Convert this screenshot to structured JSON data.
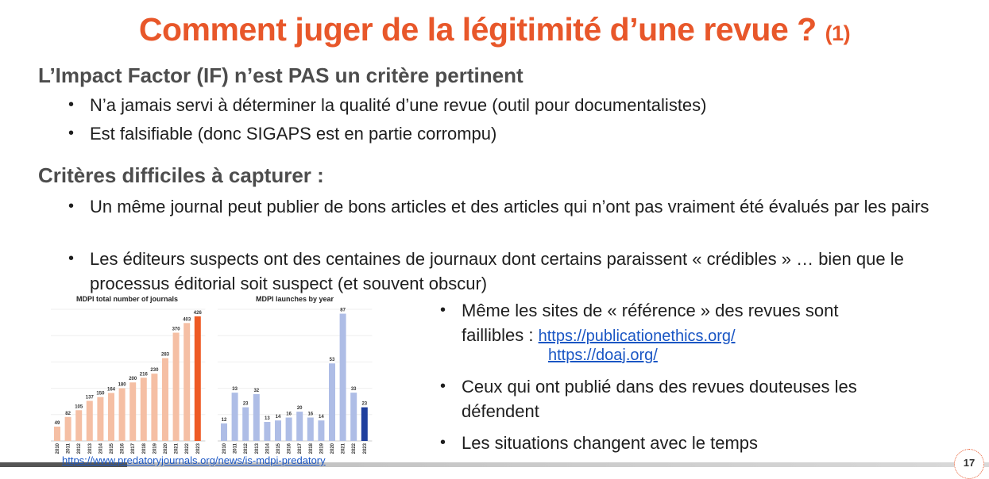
{
  "slide": {
    "title": "Comment juger de la légitimité d’une revue ?",
    "title_suffix": "(1)",
    "section1_heading": "L’Impact Factor (IF) n’est PAS un critère pertinent",
    "section1_bullets": [
      "N’a jamais servi à déterminer la qualité d’une revue (outil pour documentalistes)",
      "Est falsifiable (donc SIGAPS est en partie corrompu)"
    ],
    "section2_heading": "Critères difficiles à capturer :",
    "section2_bullets": [
      "Un même journal peut publier de bons articles et des articles qui n’ont pas vraiment été évalués par les pairs",
      "Les éditeurs suspects ont des centaines de journaux dont certains paraissent « crédibles » … bien que le processus éditorial soit suspect (et souvent obscur)"
    ],
    "right_bullets": {
      "b1_text_line1": "Même les sites de « référence » des revues sont",
      "b1_text_line2": "faillibles :",
      "link1": "https://publicationethics.org/",
      "link2": "https://doaj.org/",
      "b2": "Ceux qui ont publié dans des revues douteuses les défendent",
      "b3": "Les situations changent avec le temps"
    },
    "source_link": "https://www.predatoryjournals.org/news/is-mdpi-predatory",
    "page_number": "17"
  },
  "chart_data": [
    {
      "type": "bar",
      "title": "MDPI total number of journals",
      "categories": [
        "2010",
        "2011",
        "2012",
        "2013",
        "2014",
        "2015",
        "2016",
        "2017",
        "2018",
        "2019",
        "2020",
        "2021",
        "2022",
        "2023"
      ],
      "values": [
        49,
        82,
        105,
        137,
        150,
        164,
        180,
        200,
        216,
        230,
        283,
        370,
        403,
        426
      ],
      "ylim": [
        0,
        450
      ],
      "colors": {
        "bar": "#f5bfa4",
        "highlight": "#ee5a24"
      }
    },
    {
      "type": "bar",
      "title": "MDPI launches by year",
      "categories": [
        "2010",
        "2011",
        "2012",
        "2013",
        "2014",
        "2015",
        "2016",
        "2017",
        "2018",
        "2019",
        "2020",
        "2021",
        "2022",
        "2023"
      ],
      "values": [
        12,
        33,
        23,
        32,
        13,
        14,
        16,
        20,
        16,
        14,
        53,
        87,
        33,
        23
      ],
      "ylim": [
        0,
        90
      ],
      "colors": {
        "bar": "#aebde6",
        "highlight": "#1f3f9e"
      }
    }
  ]
}
